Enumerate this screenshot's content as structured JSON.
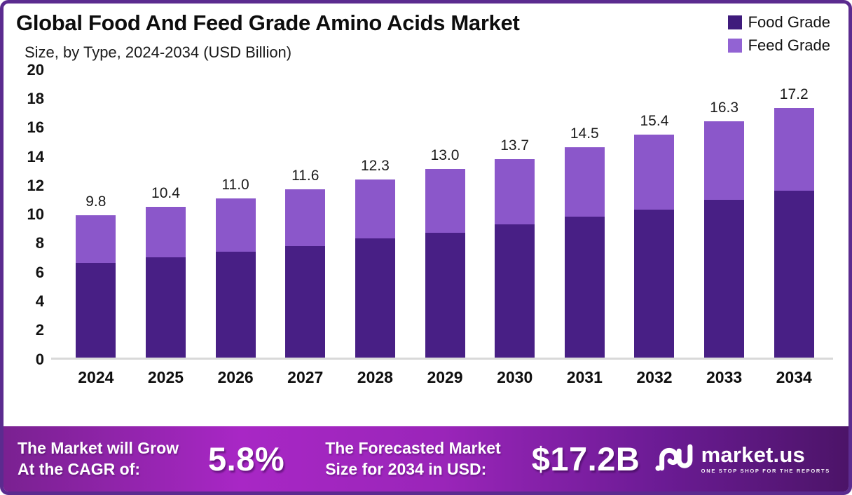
{
  "header": {
    "title": "Global Food And Feed Grade Amino Acids Market",
    "subtitle": "Size, by Type, 2024-2034 (USD Billion)"
  },
  "chart_data": {
    "type": "bar",
    "stacked": true,
    "title": "Global Food And Feed Grade Amino Acids Market Size, by Type, 2024-2034 (USD Billion)",
    "categories": [
      "2024",
      "2025",
      "2026",
      "2027",
      "2028",
      "2029",
      "2030",
      "2031",
      "2032",
      "2033",
      "2034"
    ],
    "series": [
      {
        "name": "Food Grade",
        "color": "#481f85",
        "values": [
          6.5,
          6.9,
          7.3,
          7.7,
          8.2,
          8.6,
          9.2,
          9.7,
          10.2,
          10.9,
          11.5
        ]
      },
      {
        "name": "Feed Grade",
        "color": "#8b57ca",
        "values": [
          3.3,
          3.5,
          3.7,
          3.9,
          4.1,
          4.4,
          4.5,
          4.8,
          5.2,
          5.4,
          5.7
        ]
      }
    ],
    "totals": [
      9.8,
      10.4,
      11.0,
      11.6,
      12.3,
      13.0,
      13.7,
      14.5,
      15.4,
      16.3,
      17.2
    ],
    "total_labels": [
      "9.8",
      "10.4",
      "11.0",
      "11.6",
      "12.3",
      "13.0",
      "13.7",
      "14.5",
      "15.4",
      "16.3",
      "17.2"
    ],
    "xlabel": "",
    "ylabel": "",
    "ylim": [
      0,
      20
    ],
    "y_ticks": [
      0,
      2,
      4,
      6,
      8,
      10,
      12,
      14,
      16,
      18,
      20
    ],
    "grid": false,
    "legend_position": "top-right"
  },
  "legend": [
    {
      "label": "Food Grade",
      "color": "#3f1b7c"
    },
    {
      "label": "Feed Grade",
      "color": "#9263d3"
    }
  ],
  "banner": {
    "cagr_label_line1": "The Market will Grow",
    "cagr_label_line2": "At the CAGR of:",
    "cagr_value": "5.8%",
    "forecast_label_line1": "The Forecasted Market",
    "forecast_label_line2": "Size for 2034 in USD:",
    "forecast_value": "$17.2B",
    "logo_name": "market.us",
    "logo_tagline": "ONE STOP SHOP FOR THE REPORTS"
  },
  "colors": {
    "frame_border": "#5b2b8f",
    "food_grade": "#481f85",
    "feed_grade": "#8b57ca",
    "banner_gradient_left": "#a827c5",
    "banner_gradient_right": "#4c1468",
    "axis_line": "#d9d9d9"
  }
}
